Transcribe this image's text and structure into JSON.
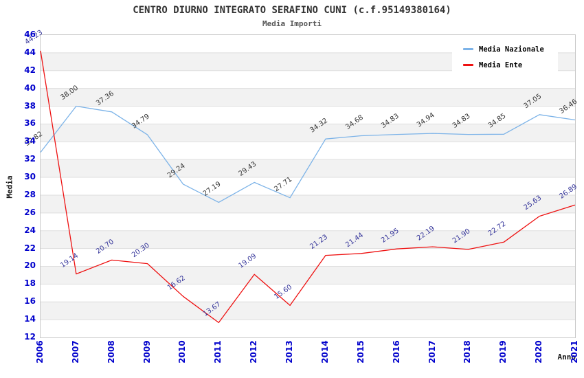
{
  "chart_data": {
    "type": "line",
    "title": "CENTRO DIURNO INTEGRATO SERAFINO CUNI (c.f.95149380164)",
    "subtitle": "Media Importi",
    "xlabel": "Anno",
    "ylabel": "Media",
    "categories": [
      "2006",
      "2007",
      "2008",
      "2009",
      "2010",
      "2011",
      "2012",
      "2013",
      "2014",
      "2015",
      "2016",
      "2017",
      "2018",
      "2019",
      "2020",
      "2021"
    ],
    "series": [
      {
        "name": "Media Nazionale",
        "color": "#7cb3e8",
        "label_color": "#333333",
        "values": [
          32.82,
          38.0,
          37.36,
          34.79,
          29.24,
          27.19,
          29.43,
          27.71,
          34.32,
          34.68,
          34.83,
          34.94,
          34.83,
          34.85,
          37.05,
          36.46
        ]
      },
      {
        "name": "Media Ente",
        "color": "#ee1111",
        "label_color": "#333399",
        "values": [
          44.23,
          19.14,
          20.7,
          20.3,
          16.62,
          13.67,
          19.09,
          15.6,
          21.23,
          21.44,
          21.95,
          22.19,
          21.9,
          22.72,
          25.63,
          26.89
        ]
      }
    ],
    "ylim": [
      12,
      46
    ],
    "y_tick_step": 2,
    "grid": "horizontal",
    "band_colors": [
      "#ffffff",
      "#f2f2f2"
    ],
    "grid_color": "#dddddd",
    "tick_label_color": "#0000cc",
    "legend_position": "top-right"
  }
}
